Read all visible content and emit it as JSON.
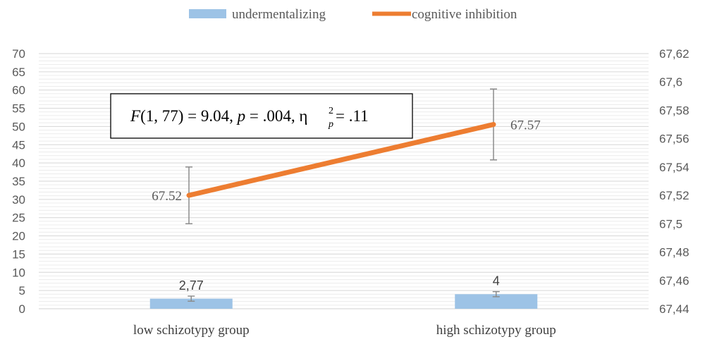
{
  "chart_data": {
    "type": "bar",
    "categories": [
      "low schizotypy group",
      "high schizotypy group"
    ],
    "series": [
      {
        "name": "undermentalizing",
        "type": "bar",
        "axis": "left",
        "color": "#9dc3e6",
        "values": [
          2.77,
          4
        ],
        "value_labels": [
          "2,77",
          "4"
        ],
        "error": [
          0.7,
          0.7
        ]
      },
      {
        "name": "cognitive inhibition",
        "type": "line",
        "axis": "right",
        "color": "#ed7d31",
        "values": [
          67.52,
          67.57
        ],
        "value_labels": [
          "67.52",
          "67.57"
        ],
        "error_low": [
          67.5,
          67.545
        ],
        "error_high": [
          67.54,
          67.595
        ]
      }
    ],
    "y_left": {
      "range": [
        0,
        70
      ],
      "ticks": [
        "0",
        "5",
        "10",
        "15",
        "20",
        "25",
        "30",
        "35",
        "40",
        "45",
        "50",
        "55",
        "60",
        "65",
        "70"
      ]
    },
    "y_right": {
      "range": [
        67.44,
        67.62
      ],
      "ticks": [
        "67,44",
        "67,46",
        "67,48",
        "67,5",
        "67,52",
        "67,54",
        "67,56",
        "67,58",
        "67,6",
        "67,62"
      ]
    },
    "grid": true,
    "legend_position": "top",
    "annotation": {
      "F": "F",
      "df_stat": "(1, 77) = 9.04, ",
      "p": "p",
      "p_value": " = .004, η",
      "sup": "2",
      "sub": "p",
      "eta_value": " = .11"
    }
  }
}
